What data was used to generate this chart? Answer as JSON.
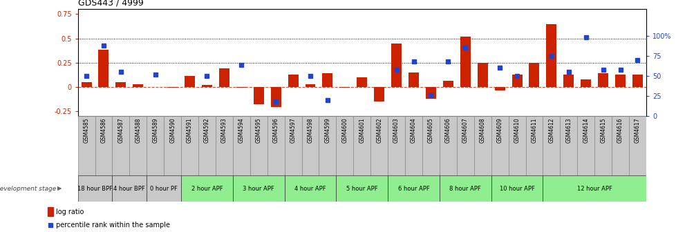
{
  "title": "GDS443 / 4999",
  "samples": [
    "GSM4585",
    "GSM4586",
    "GSM4587",
    "GSM4588",
    "GSM4589",
    "GSM4590",
    "GSM4591",
    "GSM4592",
    "GSM4593",
    "GSM4594",
    "GSM4595",
    "GSM4596",
    "GSM4597",
    "GSM4598",
    "GSM4599",
    "GSM4600",
    "GSM4601",
    "GSM4602",
    "GSM4603",
    "GSM4604",
    "GSM4605",
    "GSM4606",
    "GSM4607",
    "GSM4608",
    "GSM4609",
    "GSM4610",
    "GSM4611",
    "GSM4612",
    "GSM4613",
    "GSM4614",
    "GSM4615",
    "GSM4616",
    "GSM4617"
  ],
  "log_ratio": [
    0.05,
    0.38,
    0.05,
    0.03,
    0.0,
    -0.01,
    0.11,
    0.02,
    0.19,
    -0.01,
    -0.18,
    -0.21,
    0.13,
    0.03,
    0.14,
    -0.01,
    0.1,
    -0.15,
    0.45,
    0.15,
    -0.12,
    0.06,
    0.52,
    0.25,
    -0.04,
    0.13,
    0.25,
    0.65,
    0.13,
    0.08,
    0.14,
    0.13,
    0.13
  ],
  "percentile_rank": [
    50,
    88,
    55,
    null,
    52,
    null,
    null,
    50,
    null,
    64,
    null,
    18,
    null,
    50,
    20,
    null,
    null,
    null,
    58,
    68,
    26,
    68,
    85,
    null,
    60,
    50,
    null,
    75,
    55,
    98,
    58,
    58,
    70
  ],
  "stages": [
    {
      "label": "18 hour BPF",
      "start": 0,
      "end": 2,
      "color": "#c8c8c8"
    },
    {
      "label": "4 hour BPF",
      "start": 2,
      "end": 4,
      "color": "#c8c8c8"
    },
    {
      "label": "0 hour PF",
      "start": 4,
      "end": 6,
      "color": "#c8c8c8"
    },
    {
      "label": "2 hour APF",
      "start": 6,
      "end": 9,
      "color": "#90ee90"
    },
    {
      "label": "3 hour APF",
      "start": 9,
      "end": 12,
      "color": "#90ee90"
    },
    {
      "label": "4 hour APF",
      "start": 12,
      "end": 15,
      "color": "#90ee90"
    },
    {
      "label": "5 hour APF",
      "start": 15,
      "end": 18,
      "color": "#90ee90"
    },
    {
      "label": "6 hour APF",
      "start": 18,
      "end": 21,
      "color": "#90ee90"
    },
    {
      "label": "8 hour APF",
      "start": 21,
      "end": 24,
      "color": "#90ee90"
    },
    {
      "label": "10 hour APF",
      "start": 24,
      "end": 27,
      "color": "#90ee90"
    },
    {
      "label": "12 hour APF",
      "start": 27,
      "end": 33,
      "color": "#90ee90"
    }
  ],
  "bar_color": "#cc2200",
  "dot_color": "#2244cc",
  "ylim_left": [
    -0.3,
    0.8
  ],
  "ylim_right": [
    0,
    133.33
  ],
  "yticks_left": [
    -0.25,
    0,
    0.25,
    0.5,
    0.75
  ],
  "ytick_labels_left": [
    "-0.25",
    "0",
    "0.25",
    "0.5",
    "0.75"
  ],
  "yticks_right": [
    0,
    25,
    50,
    75,
    100
  ],
  "ytick_labels_right": [
    "0",
    "25",
    "50",
    "75",
    "100%"
  ],
  "hlines": [
    0.25,
    0.5
  ],
  "xlim": [
    -0.5,
    32.5
  ],
  "sample_box_color": "#c8c8c8",
  "stage_gray_color": "#c8c8c8",
  "stage_green_color": "#90ee90"
}
